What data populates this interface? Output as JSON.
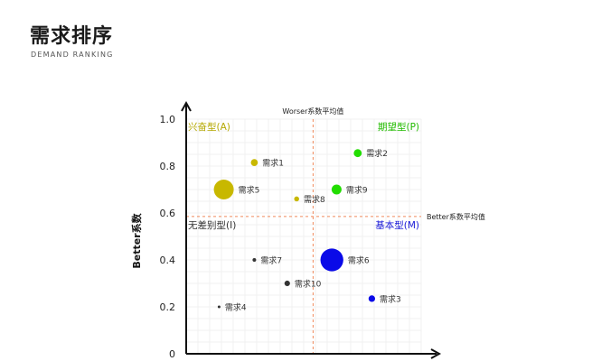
{
  "header": {
    "title": "需求排序",
    "subtitle": "DEMAND  RANKING"
  },
  "chart_data": {
    "type": "scatter",
    "title": "",
    "xlabel": "",
    "ylabel": "Better系数",
    "ylim": [
      0,
      1.0
    ],
    "yticks": [
      "0",
      "0.2",
      "0.4",
      "0.6",
      "0.8",
      "1.0"
    ],
    "grid": true,
    "reference_lines": {
      "x_label": "Worser系数平均值",
      "y_label": "Better系数平均值",
      "x_value": 0.54,
      "y_value": 0.585
    },
    "quadrants": [
      {
        "label": "兴奋型(A)",
        "position": "top-left",
        "color": "#b5a800"
      },
      {
        "label": "期望型(P)",
        "position": "top-right",
        "color": "#22bb00"
      },
      {
        "label": "无差别型(I)",
        "position": "bottom-left",
        "color": "#333333"
      },
      {
        "label": "基本型(M)",
        "position": "bottom-right",
        "color": "#1a1ad8"
      }
    ],
    "points": [
      {
        "label": "需求1",
        "x": 0.29,
        "y": 0.815,
        "size": 0.35,
        "color": "#c8b800"
      },
      {
        "label": "需求2",
        "x": 0.73,
        "y": 0.855,
        "size": 0.4,
        "color": "#22dd00"
      },
      {
        "label": "需求3",
        "x": 0.79,
        "y": 0.235,
        "size": 0.33,
        "color": "#0a0ae8"
      },
      {
        "label": "需求4",
        "x": 0.14,
        "y": 0.2,
        "size": 0.08,
        "color": "#333333"
      },
      {
        "label": "需求5",
        "x": 0.16,
        "y": 0.7,
        "size": 1.0,
        "color": "#c8b800"
      },
      {
        "label": "需求6",
        "x": 0.62,
        "y": 0.4,
        "size": 1.15,
        "color": "#0a0ae8"
      },
      {
        "label": "需求7",
        "x": 0.29,
        "y": 0.4,
        "size": 0.18,
        "color": "#333333"
      },
      {
        "label": "需求8",
        "x": 0.47,
        "y": 0.66,
        "size": 0.25,
        "color": "#c8b800"
      },
      {
        "label": "需求9",
        "x": 0.64,
        "y": 0.7,
        "size": 0.5,
        "color": "#22dd00"
      },
      {
        "label": "需求10",
        "x": 0.43,
        "y": 0.3,
        "size": 0.28,
        "color": "#333333"
      }
    ]
  }
}
